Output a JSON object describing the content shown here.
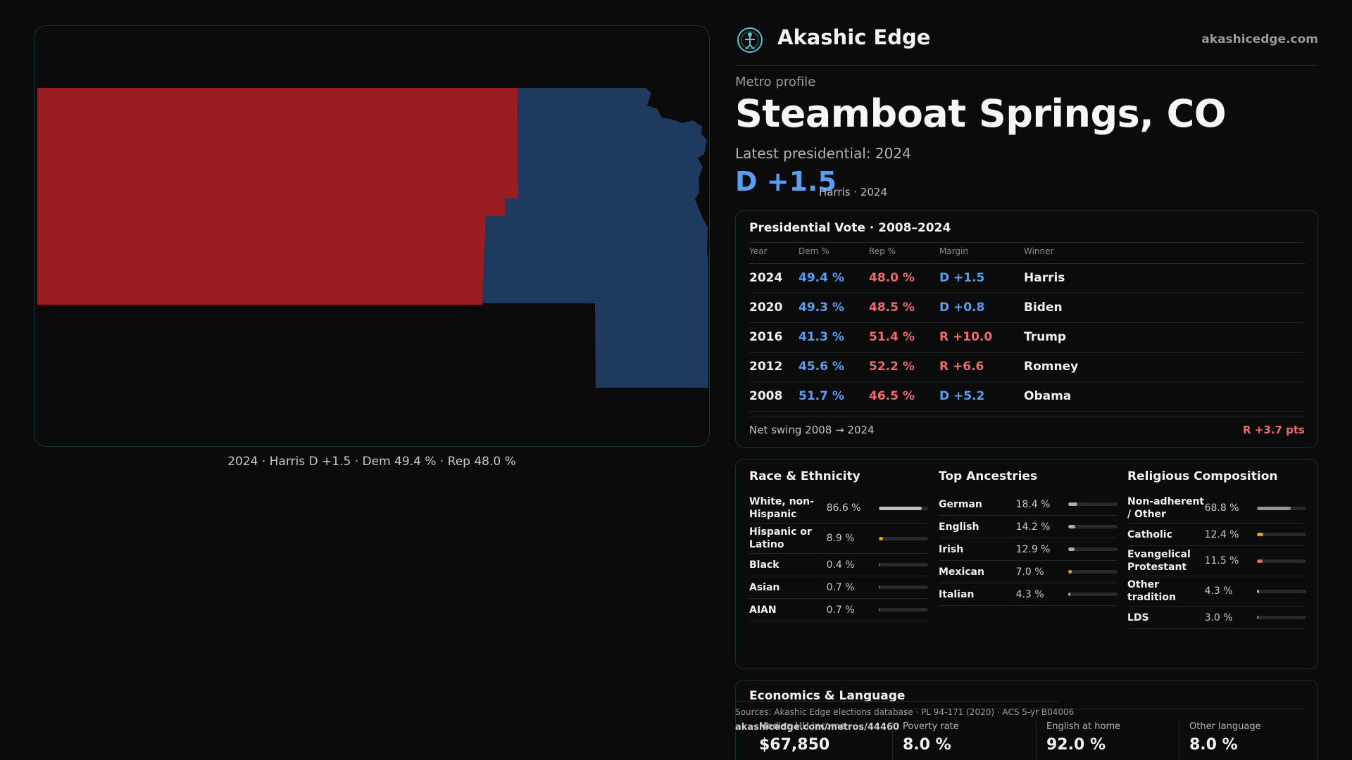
{
  "brand": {
    "name": "Akashic Edge",
    "site": "akashicedge.com"
  },
  "profile": {
    "kicker": "Metro profile",
    "title": "Steamboat Springs, CO",
    "latest": "Latest presidential: 2024",
    "margin": "D +1.5",
    "margin_sub": "Harris · 2024"
  },
  "map": {
    "caption": "2024 · Harris D +1.5 · Dem 49.4 % · Rep 48.0 %",
    "colors": {
      "rep": "#9b1c21",
      "dem": "#1e3a5f"
    }
  },
  "presidential": {
    "title": "Presidential Vote · 2008–2024",
    "headers": {
      "year": "Year",
      "dem": "Dem %",
      "rep": "Rep %",
      "margin": "Margin",
      "winner": "Winner"
    },
    "rows": [
      {
        "year": "2024",
        "dem": "49.4 %",
        "rep": "48.0 %",
        "margin": "D +1.5",
        "party": "dem",
        "winner": "Harris"
      },
      {
        "year": "2020",
        "dem": "49.3 %",
        "rep": "48.5 %",
        "margin": "D +0.8",
        "party": "dem",
        "winner": "Biden"
      },
      {
        "year": "2016",
        "dem": "41.3 %",
        "rep": "51.4 %",
        "margin": "R +10.0",
        "party": "rep",
        "winner": "Trump"
      },
      {
        "year": "2012",
        "dem": "45.6 %",
        "rep": "52.2 %",
        "margin": "R +6.6",
        "party": "rep",
        "winner": "Romney"
      },
      {
        "year": "2008",
        "dem": "51.7 %",
        "rep": "46.5 %",
        "margin": "D +5.2",
        "party": "dem",
        "winner": "Obama"
      }
    ],
    "swing_label": "Net swing 2008 → 2024",
    "swing_value": "R +3.7 pts"
  },
  "race": {
    "title": "Race & Ethnicity",
    "items": [
      {
        "label": "White, non-Hispanic",
        "value": "86.6 %",
        "pct": 86.6,
        "color": "#b9c0c6"
      },
      {
        "label": "Hispanic or Latino",
        "value": "8.9 %",
        "pct": 8.9,
        "color": "#e0a321"
      },
      {
        "label": "Black",
        "value": "0.4 %",
        "pct": 0.4,
        "color": "#6b6b6b"
      },
      {
        "label": "Asian",
        "value": "0.7 %",
        "pct": 0.7,
        "color": "#6b6b6b"
      },
      {
        "label": "AIAN",
        "value": "0.7 %",
        "pct": 0.7,
        "color": "#6b6b6b"
      }
    ]
  },
  "ancestry": {
    "title": "Top Ancestries",
    "items": [
      {
        "label": "German",
        "value": "18.4 %",
        "pct": 18.4,
        "color": "#a9b0b6"
      },
      {
        "label": "English",
        "value": "14.2 %",
        "pct": 14.2,
        "color": "#a9b0b6"
      },
      {
        "label": "Irish",
        "value": "12.9 %",
        "pct": 12.9,
        "color": "#a9b0b6"
      },
      {
        "label": "Mexican",
        "value": "7.0 %",
        "pct": 7.0,
        "color": "#e0a321"
      },
      {
        "label": "Italian",
        "value": "4.3 %",
        "pct": 4.3,
        "color": "#a9b0b6"
      }
    ]
  },
  "religion": {
    "title": "Religious Composition",
    "items": [
      {
        "label": "Non-adherent / Other",
        "value": "68.8 %",
        "pct": 68.8,
        "color": "#8e959b"
      },
      {
        "label": "Catholic",
        "value": "12.4 %",
        "pct": 12.4,
        "color": "#e0a321"
      },
      {
        "label": "Evangelical Protestant",
        "value": "11.5 %",
        "pct": 11.5,
        "color": "#e26868"
      },
      {
        "label": "Other tradition",
        "value": "4.3 %",
        "pct": 4.3,
        "color": "#a9b0b6"
      },
      {
        "label": "LDS",
        "value": "3.0 %",
        "pct": 3.0,
        "color": "#37c3a0"
      }
    ]
  },
  "economics": {
    "title": "Economics & Language",
    "stats": [
      {
        "label": "Median HH income",
        "value": "$67,850"
      },
      {
        "label": "Poverty rate",
        "value": "8.0 %"
      },
      {
        "label": "English at home",
        "value": "92.0 %"
      },
      {
        "label": "Other language",
        "value": "8.0 %"
      }
    ]
  },
  "footer": {
    "sources": "Sources: Akashic Edge elections database · PL 94-171 (2020) · ACS 5-yr B04006",
    "url": "akashicedge.com/metros/44460"
  }
}
